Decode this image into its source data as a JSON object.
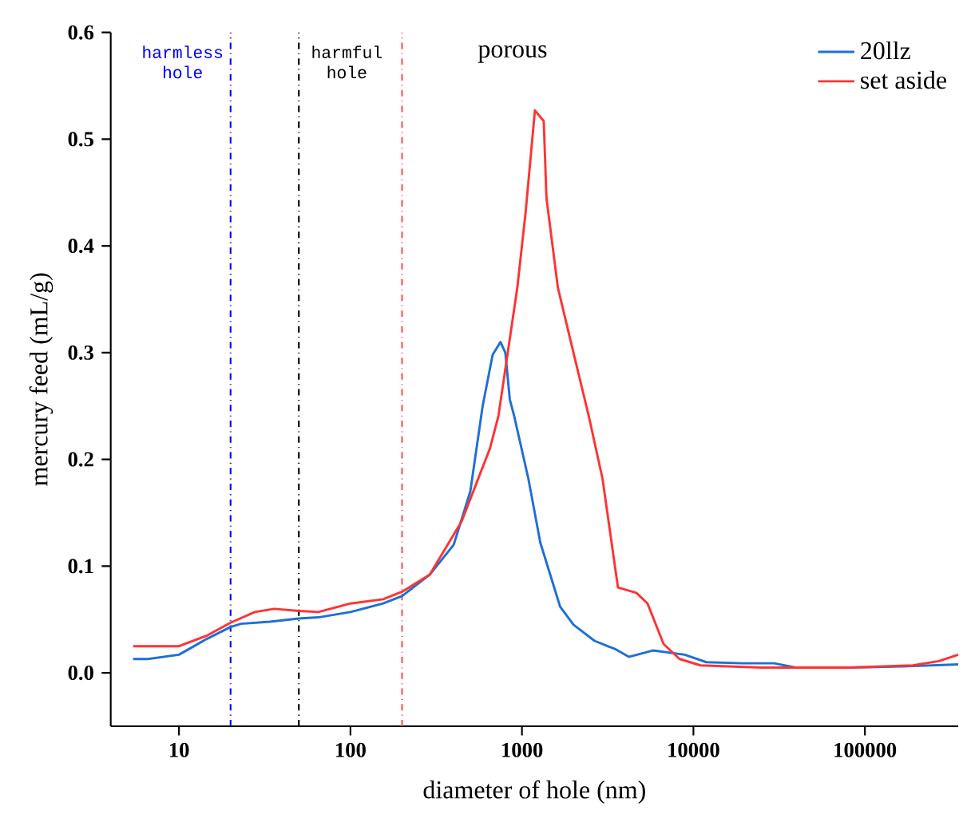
{
  "chart_data": {
    "type": "line",
    "xlabel": "diameter of hole (nm)",
    "ylabel": "mercury feed (mL/g)",
    "log": "x",
    "xlim": [
      4,
      350000
    ],
    "ylim": [
      -0.05,
      0.6
    ],
    "xticks": [
      10,
      100,
      1000,
      10000,
      100000
    ],
    "yticks": [
      {
        "value": 0,
        "label": "0.0"
      },
      {
        "value": 0.1,
        "label": "0.1"
      },
      {
        "value": 0.2,
        "label": "0.2"
      },
      {
        "value": 0.3,
        "label": "0.3"
      },
      {
        "value": 0.4,
        "label": "0.4"
      },
      {
        "value": 0.5,
        "label": "0.5"
      },
      {
        "value": 0.6,
        "label": "0.6"
      }
    ],
    "legend": "top right",
    "grid": false,
    "line_style": "solid",
    "annotations": [
      "harmless hole",
      "harmful hole",
      "porous"
    ],
    "ref_lines": [
      {
        "axis": "x",
        "value": 20,
        "color": "#0000ff",
        "line_style": "dashdot"
      },
      {
        "axis": "x",
        "value": 50,
        "color": "#000000",
        "line_style": "dashdot"
      },
      {
        "axis": "x",
        "value": 200,
        "color": "#ff5555",
        "line_style": "dashdot"
      }
    ],
    "series": [
      {
        "name": "20llz",
        "color": "#1f6fd6",
        "x": [
          5.4,
          6.6,
          10,
          14.6,
          20,
          23,
          34,
          50,
          65,
          100,
          155,
          200,
          290,
          400,
          500,
          590,
          675,
          750,
          800,
          850,
          900,
          1090,
          1280,
          1670,
          2000,
          2650,
          3530,
          4200,
          5800,
          8900,
          11900,
          19400,
          29600,
          39500,
          81000,
          165000,
          350000
        ],
        "values": [
          0.013,
          0.013,
          0.017,
          0.032,
          0.043,
          0.046,
          0.048,
          0.051,
          0.052,
          0.057,
          0.065,
          0.072,
          0.092,
          0.12,
          0.17,
          0.25,
          0.298,
          0.31,
          0.3,
          0.256,
          0.241,
          0.182,
          0.122,
          0.062,
          0.045,
          0.03,
          0.022,
          0.015,
          0.021,
          0.017,
          0.01,
          0.009,
          0.009,
          0.005,
          0.005,
          0.006,
          0.008
        ]
      },
      {
        "name": "set aside",
        "color": "#ff3333",
        "x": [
          5.4,
          10,
          14.6,
          20,
          27.7,
          36,
          50,
          65,
          100,
          155,
          200,
          290,
          445,
          550,
          650,
          730,
          940,
          1050,
          1190,
          1340,
          1390,
          1620,
          2060,
          2450,
          2950,
          3630,
          4650,
          5400,
          6700,
          8300,
          11000,
          25000,
          81000,
          190000,
          270000,
          350000
        ],
        "values": [
          0.025,
          0.025,
          0.035,
          0.047,
          0.057,
          0.06,
          0.058,
          0.057,
          0.065,
          0.069,
          0.076,
          0.092,
          0.142,
          0.18,
          0.21,
          0.241,
          0.361,
          0.431,
          0.527,
          0.517,
          0.445,
          0.361,
          0.291,
          0.241,
          0.182,
          0.08,
          0.075,
          0.065,
          0.027,
          0.013,
          0.007,
          0.005,
          0.005,
          0.007,
          0.011,
          0.017
        ]
      }
    ]
  }
}
